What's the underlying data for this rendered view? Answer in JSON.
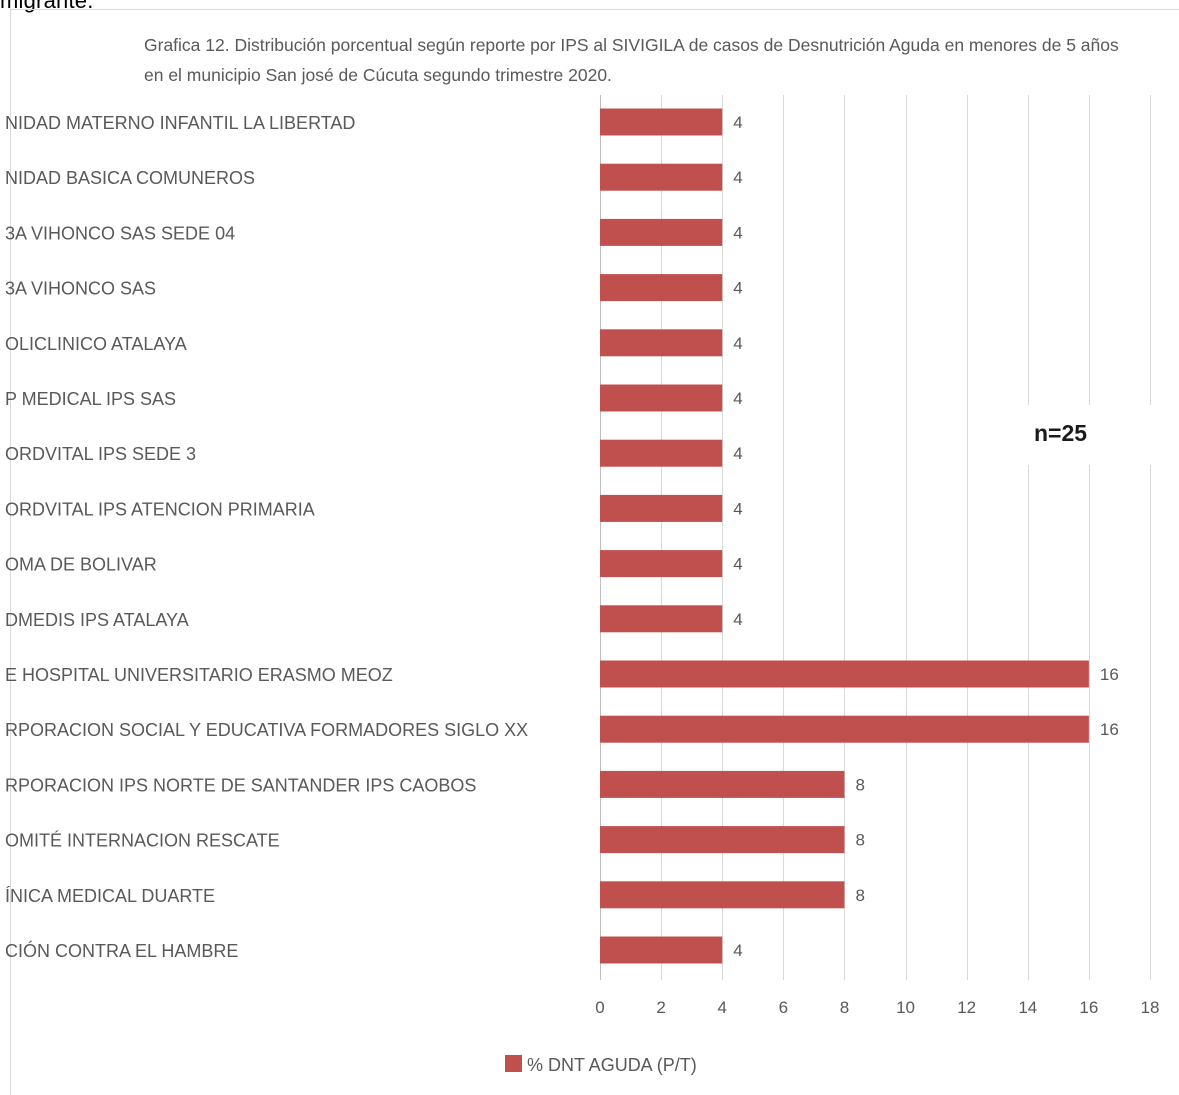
{
  "page": {
    "top_text": "migrante."
  },
  "chart_data": {
    "type": "bar",
    "orientation": "horizontal",
    "title": "Grafica 12. Distribución porcentual según reporte por IPS al SIVIGILA de casos de Desnutrición Aguda en menores de 5 años en el municipio San josé de Cúcuta segundo trimestre 2020.",
    "categories": [
      "NIDAD MATERNO INFANTIL LA LIBERTAD",
      "NIDAD BASICA COMUNEROS",
      "3A VIHONCO SAS SEDE 04",
      "3A VIHONCO SAS",
      "OLICLINICO ATALAYA",
      "P MEDICAL IPS SAS",
      "ORDVITAL IPS SEDE 3",
      "ORDVITAL IPS ATENCION PRIMARIA",
      "OMA DE BOLIVAR",
      "DMEDIS IPS ATALAYA",
      "E HOSPITAL UNIVERSITARIO ERASMO MEOZ",
      "RPORACION SOCIAL Y EDUCATIVA FORMADORES SIGLO XX",
      "RPORACION IPS NORTE DE SANTANDER IPS CAOBOS",
      "OMITÉ INTERNACION RESCATE",
      "ÍNICA MEDICAL DUARTE",
      "CIÓN CONTRA EL HAMBRE"
    ],
    "series": [
      {
        "name": "% DNT AGUDA (P/T)",
        "color": "#c0504d",
        "values": [
          4,
          4,
          4,
          4,
          4,
          4,
          4,
          4,
          4,
          4,
          16,
          16,
          8,
          8,
          8,
          4
        ]
      }
    ],
    "xlim": [
      0,
      18
    ],
    "xticks": [
      0,
      2,
      4,
      6,
      8,
      10,
      12,
      14,
      16,
      18
    ],
    "grid": true,
    "legend": "bottom",
    "annotation": "n=25"
  }
}
